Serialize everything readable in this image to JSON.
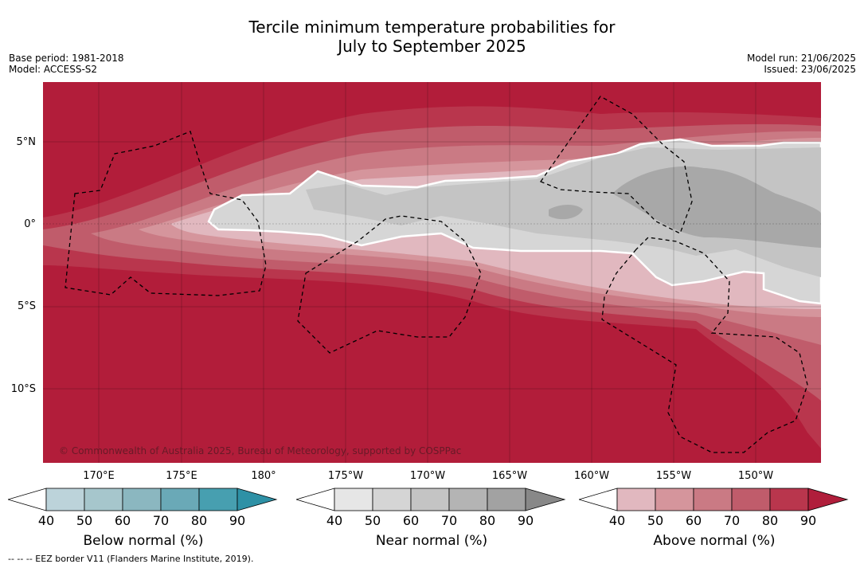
{
  "title_line1": "Tercile minimum temperature probabilities for",
  "title_line2": "July to September 2025",
  "base_period": "Base period: 1981-2018",
  "model": "Model: ACCESS-S2",
  "model_run": "Model run: 21/06/2025",
  "issued": "Issued: 23/06/2025",
  "copyright": "© Commonwealth of Australia 2025, Bureau of Meteorology, supported by COSPPac",
  "footer": "--  --  -- EEZ border V11 (Flanders Marine Institute, 2019).",
  "lat_labels": [
    "5°N",
    "0°",
    "5°S",
    "10°S"
  ],
  "lon_labels": [
    "170°E",
    "175°E",
    "180°",
    "175°W",
    "170°W",
    "165°W",
    "160°W",
    "155°W",
    "150°W"
  ],
  "colorbars": [
    {
      "title": "Below normal (%)",
      "ticks": [
        "40",
        "50",
        "60",
        "70",
        "80",
        "90"
      ],
      "colors": [
        "#bcd3da",
        "#a6c6cc",
        "#8bb7c0",
        "#6aa9b7",
        "#479fb0",
        "#2e91a6"
      ]
    },
    {
      "title": "Near normal (%)",
      "ticks": [
        "40",
        "50",
        "60",
        "70",
        "80",
        "90"
      ],
      "colors": [
        "#e6e6e6",
        "#d5d5d5",
        "#c4c4c4",
        "#b4b4b4",
        "#a2a2a2",
        "#888888"
      ]
    },
    {
      "title": "Above normal (%)",
      "ticks": [
        "40",
        "50",
        "60",
        "70",
        "80",
        "90"
      ],
      "colors": [
        "#e1b8bf",
        "#d5959c",
        "#ca7a84",
        "#c05c6b",
        "#b9364d",
        "#b01e3b"
      ]
    }
  ],
  "colors": {
    "above_max": "#b21d3a",
    "near_white": "#ffffff"
  }
}
